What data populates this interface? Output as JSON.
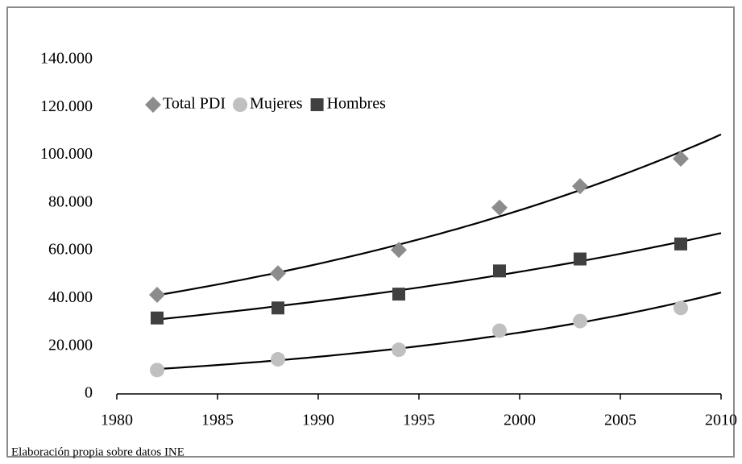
{
  "chart_data": {
    "type": "scatter",
    "x": [
      1982,
      1988,
      1994,
      1999,
      2003,
      2008
    ],
    "series": [
      {
        "name": "Total PDI",
        "color": "#8c8c8c",
        "marker": "diamond",
        "values": [
          41500,
          50500,
          60300,
          78000,
          87000,
          98500
        ]
      },
      {
        "name": "Mujeres",
        "color": "#c0c0c0",
        "marker": "circle",
        "values": [
          10000,
          14500,
          18500,
          26500,
          30500,
          36000
        ]
      },
      {
        "name": "Hombres",
        "color": "#404040",
        "marker": "square",
        "values": [
          31800,
          36000,
          41800,
          51500,
          56500,
          62800
        ]
      }
    ],
    "trendline": "exponential",
    "xlim": [
      1980,
      2010
    ],
    "xticks": [
      1980,
      1985,
      1990,
      1995,
      2000,
      2005,
      2010
    ],
    "ylim": [
      0,
      140000
    ],
    "yticks": [
      0,
      {
        "value": 20000,
        "label": "20.000"
      },
      {
        "value": 40000,
        "label": "40.000"
      },
      {
        "value": 60000,
        "label": "60.000"
      },
      {
        "value": 80000,
        "label": "80.000"
      },
      {
        "value": 100000,
        "label": "100.000"
      },
      {
        "value": 120000,
        "label": "120.000"
      },
      {
        "value": 140000,
        "label": "140.000"
      }
    ],
    "legend": "top-left",
    "caption": "Elaboración propia sobre datos INE"
  }
}
